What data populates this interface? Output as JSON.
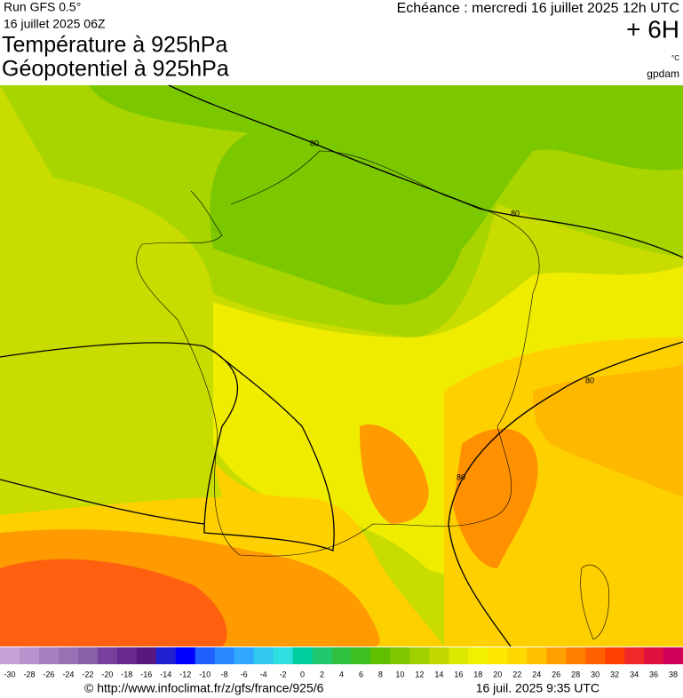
{
  "header": {
    "run": "Run GFS 0.5°",
    "date": "16 juillet 2025 06Z",
    "title_temperature": "Température à 925hPa",
    "title_geopotential": "Géopotentiel à 925hPa",
    "echeance": "Echéance : mercredi 16 juillet 2025 12h UTC",
    "lead_time": "+ 6H",
    "unit": "°C",
    "geopotential_unit": "gpdam"
  },
  "map": {
    "contour_labels": [
      "80",
      "80",
      "80",
      "80"
    ]
  },
  "colorbar": {
    "ticks": [
      -30,
      -28,
      -26,
      -24,
      -22,
      -20,
      -18,
      -16,
      -14,
      -12,
      -10,
      -8,
      -6,
      -4,
      -2,
      0,
      2,
      4,
      6,
      8,
      10,
      12,
      14,
      16,
      18,
      20,
      22,
      24,
      26,
      28,
      30,
      32,
      34,
      36,
      38
    ],
    "colors": [
      "#c8a0d8",
      "#b890cc",
      "#a880c0",
      "#9870b4",
      "#8860a8",
      "#78409c",
      "#682890",
      "#581880",
      "#2020d0",
      "#0000ff",
      "#2060ff",
      "#2888ff",
      "#30a8ff",
      "#30c8f0",
      "#30e0e0",
      "#00d0a0",
      "#20c870",
      "#30c040",
      "#40c020",
      "#60c000",
      "#80c800",
      "#a0d000",
      "#c0d800",
      "#dce800",
      "#f0f000",
      "#ffe800",
      "#ffd800",
      "#ffc000",
      "#ffa000",
      "#ff8000",
      "#ff6000",
      "#ff4000",
      "#f02828",
      "#e01040",
      "#d00058"
    ]
  },
  "footer": {
    "credit": "© http://www.infoclimat.fr/z/gfs/france/925/6",
    "generated": "16 juil. 2025  9:35 UTC"
  }
}
